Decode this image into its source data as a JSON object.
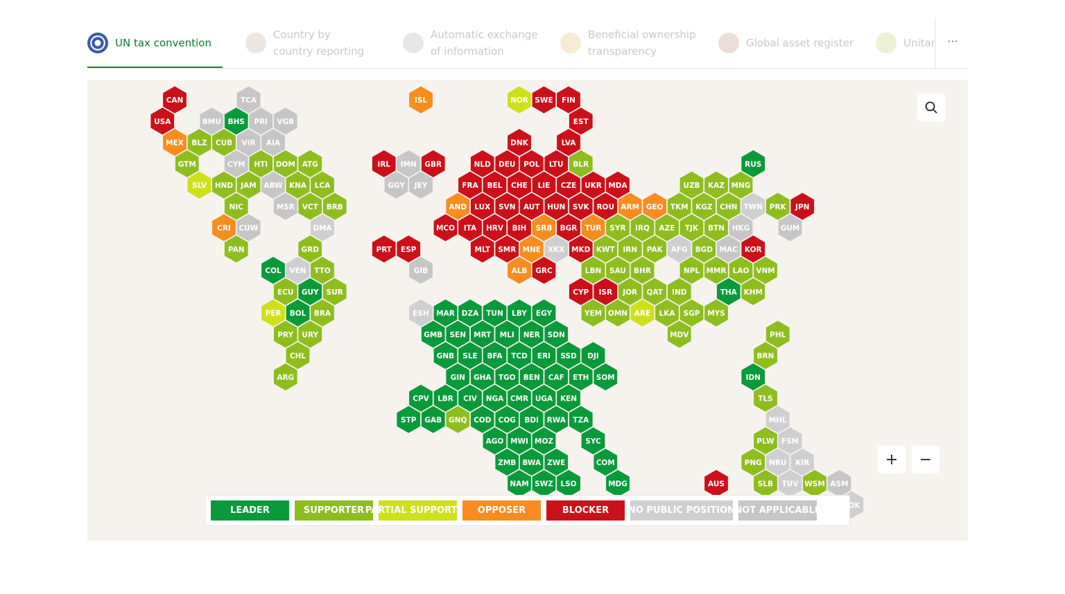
{
  "tabs": [
    "UN tax convention",
    "Country by country reporting",
    "Automatic exchange of information",
    "Beneficial ownership transparency",
    "Global asset register",
    "Unitary"
  ],
  "more": "···",
  "zoom": [
    "+",
    "−"
  ],
  "legend": [
    {
      "label": "LEADER",
      "color": "#0b9a3a"
    },
    {
      "label": "SUPPORTER",
      "color": "#8ebd1f"
    },
    {
      "label": "PARTIAL SUPPORTER",
      "color": "#cfe01b"
    },
    {
      "label": "OPPOSER",
      "color": "#f98c1f"
    },
    {
      "label": "BLOCKER",
      "color": "#cc1019"
    },
    {
      "label": "NO PUBLIC POSITION",
      "color": "#cfcfcf"
    },
    {
      "label": "NOT APPLICABLE",
      "color": "#c6c6c6"
    }
  ],
  "countries": [
    {
      "code": "CAN",
      "status": "BLOCKER"
    },
    {
      "code": "TCA",
      "status": "NOT APPLICABLE"
    },
    {
      "code": "ISL",
      "status": "OPPOSER"
    },
    {
      "code": "NOR",
      "status": "PARTIAL SUPPORTER"
    },
    {
      "code": "SWE",
      "status": "BLOCKER"
    },
    {
      "code": "FIN",
      "status": "BLOCKER"
    },
    {
      "code": "USA",
      "status": "BLOCKER"
    },
    {
      "code": "BMU",
      "status": "NOT APPLICABLE"
    },
    {
      "code": "BHS",
      "status": "LEADER"
    },
    {
      "code": "PRI",
      "status": "NOT APPLICABLE"
    },
    {
      "code": "VGB",
      "status": "NOT APPLICABLE"
    },
    {
      "code": "EST",
      "status": "BLOCKER"
    },
    {
      "code": "MEX",
      "status": "OPPOSER"
    },
    {
      "code": "BLZ",
      "status": "SUPPORTER"
    },
    {
      "code": "CUB",
      "status": "SUPPORTER"
    },
    {
      "code": "VIR",
      "status": "NOT APPLICABLE"
    },
    {
      "code": "AIA",
      "status": "NOT APPLICABLE"
    },
    {
      "code": "DNK",
      "status": "BLOCKER"
    },
    {
      "code": "LVA",
      "status": "BLOCKER"
    },
    {
      "code": "GTM",
      "status": "SUPPORTER"
    },
    {
      "code": "CYM",
      "status": "NOT APPLICABLE"
    },
    {
      "code": "HTI",
      "status": "SUPPORTER"
    },
    {
      "code": "DOM",
      "status": "SUPPORTER"
    },
    {
      "code": "ATG",
      "status": "SUPPORTER"
    },
    {
      "code": "IRL",
      "status": "BLOCKER"
    },
    {
      "code": "IMN",
      "status": "NOT APPLICABLE"
    },
    {
      "code": "GBR",
      "status": "BLOCKER"
    },
    {
      "code": "NLD",
      "status": "BLOCKER"
    },
    {
      "code": "DEU",
      "status": "BLOCKER"
    },
    {
      "code": "POL",
      "status": "BLOCKER"
    },
    {
      "code": "LTU",
      "status": "BLOCKER"
    },
    {
      "code": "BLR",
      "status": "SUPPORTER"
    },
    {
      "code": "RUS",
      "status": "LEADER"
    },
    {
      "code": "SLV",
      "status": "PARTIAL SUPPORTER"
    },
    {
      "code": "HND",
      "status": "SUPPORTER"
    },
    {
      "code": "JAM",
      "status": "SUPPORTER"
    },
    {
      "code": "ABW",
      "status": "NOT APPLICABLE"
    },
    {
      "code": "KNA",
      "status": "SUPPORTER"
    },
    {
      "code": "LCA",
      "status": "SUPPORTER"
    },
    {
      "code": "GGY",
      "status": "NOT APPLICABLE"
    },
    {
      "code": "JEY",
      "status": "NOT APPLICABLE"
    },
    {
      "code": "FRA",
      "status": "BLOCKER"
    },
    {
      "code": "BEL",
      "status": "BLOCKER"
    },
    {
      "code": "CHE",
      "status": "BLOCKER"
    },
    {
      "code": "LIE",
      "status": "BLOCKER"
    },
    {
      "code": "CZE",
      "status": "BLOCKER"
    },
    {
      "code": "UKR",
      "status": "BLOCKER"
    },
    {
      "code": "MDA",
      "status": "BLOCKER"
    },
    {
      "code": "UZB",
      "status": "SUPPORTER"
    },
    {
      "code": "KAZ",
      "status": "SUPPORTER"
    },
    {
      "code": "MNG",
      "status": "SUPPORTER"
    },
    {
      "code": "NIC",
      "status": "SUPPORTER"
    },
    {
      "code": "MSR",
      "status": "NOT APPLICABLE"
    },
    {
      "code": "VCT",
      "status": "SUPPORTER"
    },
    {
      "code": "BRB",
      "status": "SUPPORTER"
    },
    {
      "code": "AND",
      "status": "OPPOSER"
    },
    {
      "code": "LUX",
      "status": "BLOCKER"
    },
    {
      "code": "SVN",
      "status": "BLOCKER"
    },
    {
      "code": "AUT",
      "status": "BLOCKER"
    },
    {
      "code": "HUN",
      "status": "BLOCKER"
    },
    {
      "code": "SVK",
      "status": "BLOCKER"
    },
    {
      "code": "ROU",
      "status": "BLOCKER"
    },
    {
      "code": "ARM",
      "status": "OPPOSER"
    },
    {
      "code": "GEO",
      "status": "OPPOSER"
    },
    {
      "code": "TKM",
      "status": "SUPPORTER"
    },
    {
      "code": "KGZ",
      "status": "SUPPORTER"
    },
    {
      "code": "CHN",
      "status": "SUPPORTER"
    },
    {
      "code": "TWN",
      "status": "NO PUBLIC POSITION"
    },
    {
      "code": "PRK",
      "status": "SUPPORTER"
    },
    {
      "code": "JPN",
      "status": "BLOCKER"
    },
    {
      "code": "CRI",
      "status": "OPPOSER"
    },
    {
      "code": "CUW",
      "status": "NOT APPLICABLE"
    },
    {
      "code": "DMA",
      "status": "NO PUBLIC POSITION"
    },
    {
      "code": "MCO",
      "status": "BLOCKER"
    },
    {
      "code": "ITA",
      "status": "BLOCKER"
    },
    {
      "code": "HRV",
      "status": "BLOCKER"
    },
    {
      "code": "BIH",
      "status": "BLOCKER"
    },
    {
      "code": "SRB",
      "status": "OPPOSER"
    },
    {
      "code": "BGR",
      "status": "BLOCKER"
    },
    {
      "code": "TUR",
      "status": "OPPOSER"
    },
    {
      "code": "SYR",
      "status": "SUPPORTER"
    },
    {
      "code": "IRQ",
      "status": "SUPPORTER"
    },
    {
      "code": "AZE",
      "status": "SUPPORTER"
    },
    {
      "code": "TJK",
      "status": "SUPPORTER"
    },
    {
      "code": "BTN",
      "status": "SUPPORTER"
    },
    {
      "code": "HKG",
      "status": "NOT APPLICABLE"
    },
    {
      "code": "GUM",
      "status": "NOT APPLICABLE"
    },
    {
      "code": "PAN",
      "status": "SUPPORTER"
    },
    {
      "code": "GRD",
      "status": "SUPPORTER"
    },
    {
      "code": "PRT",
      "status": "BLOCKER"
    },
    {
      "code": "ESP",
      "status": "BLOCKER"
    },
    {
      "code": "MLT",
      "status": "BLOCKER"
    },
    {
      "code": "SMR",
      "status": "BLOCKER"
    },
    {
      "code": "MNE",
      "status": "OPPOSER"
    },
    {
      "code": "XKX",
      "status": "NO PUBLIC POSITION"
    },
    {
      "code": "MKD",
      "status": "BLOCKER"
    },
    {
      "code": "KWT",
      "status": "SUPPORTER"
    },
    {
      "code": "IRN",
      "status": "SUPPORTER"
    },
    {
      "code": "PAK",
      "status": "SUPPORTER"
    },
    {
      "code": "AFG",
      "status": "NO PUBLIC POSITION"
    },
    {
      "code": "BGD",
      "status": "SUPPORTER"
    },
    {
      "code": "MAC",
      "status": "NOT APPLICABLE"
    },
    {
      "code": "KOR",
      "status": "BLOCKER"
    },
    {
      "code": "COL",
      "status": "LEADER"
    },
    {
      "code": "VEN",
      "status": "NO PUBLIC POSITION"
    },
    {
      "code": "TTO",
      "status": "SUPPORTER"
    },
    {
      "code": "GIB",
      "status": "NOT APPLICABLE"
    },
    {
      "code": "ALB",
      "status": "OPPOSER"
    },
    {
      "code": "GRC",
      "status": "BLOCKER"
    },
    {
      "code": "LBN",
      "status": "SUPPORTER"
    },
    {
      "code": "SAU",
      "status": "SUPPORTER"
    },
    {
      "code": "BHR",
      "status": "SUPPORTER"
    },
    {
      "code": "NPL",
      "status": "SUPPORTER"
    },
    {
      "code": "MMR",
      "status": "SUPPORTER"
    },
    {
      "code": "LAO",
      "status": "SUPPORTER"
    },
    {
      "code": "VNM",
      "status": "SUPPORTER"
    },
    {
      "code": "ECU",
      "status": "SUPPORTER"
    },
    {
      "code": "GUY",
      "status": "LEADER"
    },
    {
      "code": "SUR",
      "status": "SUPPORTER"
    },
    {
      "code": "CYP",
      "status": "BLOCKER"
    },
    {
      "code": "ISR",
      "status": "BLOCKER"
    },
    {
      "code": "JOR",
      "status": "SUPPORTER"
    },
    {
      "code": "QAT",
      "status": "SUPPORTER"
    },
    {
      "code": "IND",
      "status": "SUPPORTER"
    },
    {
      "code": "THA",
      "status": "LEADER"
    },
    {
      "code": "KHM",
      "status": "SUPPORTER"
    },
    {
      "code": "PER",
      "status": "PARTIAL SUPPORTER"
    },
    {
      "code": "BOL",
      "status": "LEADER"
    },
    {
      "code": "BRA",
      "status": "SUPPORTER"
    },
    {
      "code": "ESH",
      "status": "NO PUBLIC POSITION"
    },
    {
      "code": "MAR",
      "status": "LEADER"
    },
    {
      "code": "DZA",
      "status": "LEADER"
    },
    {
      "code": "TUN",
      "status": "LEADER"
    },
    {
      "code": "LBY",
      "status": "LEADER"
    },
    {
      "code": "EGY",
      "status": "LEADER"
    },
    {
      "code": "YEM",
      "status": "SUPPORTER"
    },
    {
      "code": "OMN",
      "status": "SUPPORTER"
    },
    {
      "code": "ARE",
      "status": "PARTIAL SUPPORTER"
    },
    {
      "code": "LKA",
      "status": "SUPPORTER"
    },
    {
      "code": "SGP",
      "status": "SUPPORTER"
    },
    {
      "code": "MYS",
      "status": "SUPPORTER"
    },
    {
      "code": "PRY",
      "status": "SUPPORTER"
    },
    {
      "code": "URY",
      "status": "SUPPORTER"
    },
    {
      "code": "GMB",
      "status": "LEADER"
    },
    {
      "code": "SEN",
      "status": "LEADER"
    },
    {
      "code": "MRT",
      "status": "LEADER"
    },
    {
      "code": "MLI",
      "status": "LEADER"
    },
    {
      "code": "NER",
      "status": "LEADER"
    },
    {
      "code": "SDN",
      "status": "LEADER"
    },
    {
      "code": "MDV",
      "status": "SUPPORTER"
    },
    {
      "code": "PHL",
      "status": "SUPPORTER"
    },
    {
      "code": "CHL",
      "status": "SUPPORTER"
    },
    {
      "code": "GNB",
      "status": "LEADER"
    },
    {
      "code": "SLE",
      "status": "LEADER"
    },
    {
      "code": "BFA",
      "status": "LEADER"
    },
    {
      "code": "TCD",
      "status": "LEADER"
    },
    {
      "code": "ERI",
      "status": "LEADER"
    },
    {
      "code": "SSD",
      "status": "LEADER"
    },
    {
      "code": "DJI",
      "status": "LEADER"
    },
    {
      "code": "BRN",
      "status": "SUPPORTER"
    },
    {
      "code": "ARG",
      "status": "SUPPORTER"
    },
    {
      "code": "GIN",
      "status": "LEADER"
    },
    {
      "code": "GHA",
      "status": "LEADER"
    },
    {
      "code": "TGO",
      "status": "LEADER"
    },
    {
      "code": "BEN",
      "status": "LEADER"
    },
    {
      "code": "CAF",
      "status": "LEADER"
    },
    {
      "code": "ETH",
      "status": "LEADER"
    },
    {
      "code": "SOM",
      "status": "LEADER"
    },
    {
      "code": "IDN",
      "status": "LEADER"
    },
    {
      "code": "CPV",
      "status": "LEADER"
    },
    {
      "code": "LBR",
      "status": "LEADER"
    },
    {
      "code": "CIV",
      "status": "LEADER"
    },
    {
      "code": "NGA",
      "status": "LEADER"
    },
    {
      "code": "CMR",
      "status": "LEADER"
    },
    {
      "code": "UGA",
      "status": "LEADER"
    },
    {
      "code": "KEN",
      "status": "LEADER"
    },
    {
      "code": "TLS",
      "status": "SUPPORTER"
    },
    {
      "code": "STP",
      "status": "LEADER"
    },
    {
      "code": "GAB",
      "status": "LEADER"
    },
    {
      "code": "GNQ",
      "status": "SUPPORTER"
    },
    {
      "code": "COD",
      "status": "LEADER"
    },
    {
      "code": "COG",
      "status": "LEADER"
    },
    {
      "code": "BDI",
      "status": "LEADER"
    },
    {
      "code": "RWA",
      "status": "LEADER"
    },
    {
      "code": "TZA",
      "status": "LEADER"
    },
    {
      "code": "MHL",
      "status": "NO PUBLIC POSITION"
    },
    {
      "code": "AGO",
      "status": "LEADER"
    },
    {
      "code": "MWI",
      "status": "LEADER"
    },
    {
      "code": "MOZ",
      "status": "LEADER"
    },
    {
      "code": "SYC",
      "status": "LEADER"
    },
    {
      "code": "PLW",
      "status": "SUPPORTER"
    },
    {
      "code": "FSM",
      "status": "NO PUBLIC POSITION"
    },
    {
      "code": "ZMB",
      "status": "LEADER"
    },
    {
      "code": "BWA",
      "status": "LEADER"
    },
    {
      "code": "ZWE",
      "status": "LEADER"
    },
    {
      "code": "COM",
      "status": "LEADER"
    },
    {
      "code": "PNG",
      "status": "SUPPORTER"
    },
    {
      "code": "NRU",
      "status": "NO PUBLIC POSITION"
    },
    {
      "code": "KIR",
      "status": "NO PUBLIC POSITION"
    },
    {
      "code": "NAM",
      "status": "LEADER"
    },
    {
      "code": "SWZ",
      "status": "LEADER"
    },
    {
      "code": "LSO",
      "status": "LEADER"
    },
    {
      "code": "MDG",
      "status": "LEADER"
    },
    {
      "code": "AUS",
      "status": "BLOCKER"
    },
    {
      "code": "SLB",
      "status": "SUPPORTER"
    },
    {
      "code": "TUV",
      "status": "NO PUBLIC POSITION"
    },
    {
      "code": "WSM",
      "status": "SUPPORTER"
    },
    {
      "code": "ASM",
      "status": "NOT APPLICABLE"
    },
    {
      "code": "COK",
      "status": "NO PUBLIC POSITION"
    }
  ]
}
